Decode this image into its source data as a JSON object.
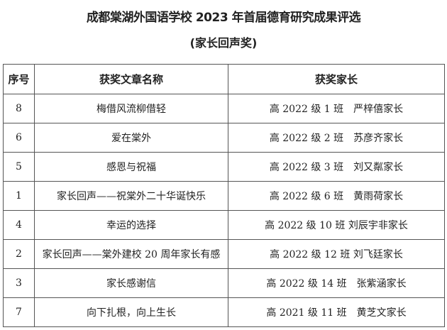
{
  "title": "成都棠湖外国语学校 2023 年首届德育研究成果评选",
  "subtitle": "(家长回声奖)",
  "table": {
    "headers": [
      "序号",
      "获奖文章名称",
      "获奖家长"
    ],
    "rows": [
      [
        "8",
        "梅借风流柳借轻",
        "高 2022 级 1 班　严梓僖家长"
      ],
      [
        "6",
        "爱在棠外",
        "高 2022 级 2 班　苏彦齐家长"
      ],
      [
        "5",
        "感恩与祝福",
        "高 2022 级 3 班　刘又粼家长"
      ],
      [
        "1",
        "家长回声——祝棠外二十华诞快乐",
        "高 2022 级 6 班　黄雨荷家长"
      ],
      [
        "4",
        "幸运的选择",
        "高 2022 级 10 班 刘辰宇非家长"
      ],
      [
        "2",
        "家长回声——棠外建校 20 周年家长有感",
        "高 2022 级 12 班 刘飞廷家长"
      ],
      [
        "3",
        "家长感谢信",
        "高 2022 级 14 班　张紫涵家长"
      ],
      [
        "7",
        "向下扎根，向上生长",
        "高 2021 级 11 班　黄芝文家长"
      ]
    ]
  }
}
